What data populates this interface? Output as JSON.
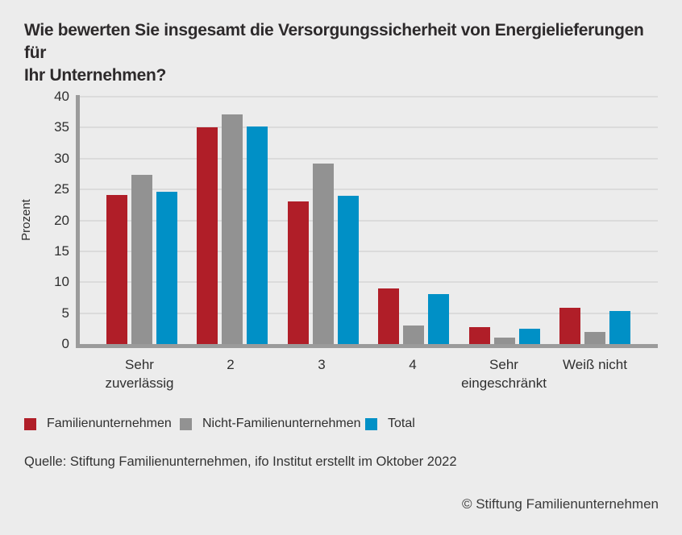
{
  "header": {
    "title_lines": [
      "Wie bewerten Sie insgesamt die Versorgungssicherheit von Energielieferungen für",
      "Ihr Unternehmen?"
    ]
  },
  "chart_data": {
    "type": "bar",
    "title": "Wie bewerten Sie insgesamt die Versorgungssicherheit von Energielieferungen für Ihr Unternehmen?",
    "xlabel": "",
    "ylabel": "Prozent",
    "ylim": [
      0,
      40
    ],
    "yticks": [
      0,
      5,
      10,
      15,
      20,
      25,
      30,
      35,
      40
    ],
    "grid": true,
    "legend_position": "bottom",
    "categories": [
      "Sehr zuverlässig",
      "2",
      "3",
      "4",
      "Sehr eingeschränkt",
      "Weiß nicht"
    ],
    "category_label_lines": [
      [
        "Sehr",
        "zuverlässig"
      ],
      [
        "2"
      ],
      [
        "3"
      ],
      [
        "4"
      ],
      [
        "Sehr",
        "eingeschränkt"
      ],
      [
        "Weiß nicht"
      ]
    ],
    "series": [
      {
        "name": "Familienunternehmen",
        "color": "#b01e28",
        "values": [
          24.1,
          35.0,
          23.1,
          9.0,
          2.7,
          5.9
        ]
      },
      {
        "name": "Nicht-Familienunternehmen",
        "color": "#929292",
        "values": [
          27.3,
          37.1,
          29.2,
          3.0,
          1.0,
          1.9
        ]
      },
      {
        "name": "Total",
        "color": "#0090c6",
        "values": [
          24.6,
          35.2,
          24.0,
          8.1,
          2.5,
          5.3
        ]
      }
    ]
  },
  "colors": {
    "background": "#ececec",
    "gridline": "#dbdbdb",
    "axis": "#9b9b9b",
    "title_text": "#2d2a2b",
    "familienunternehmen": "#b01e28",
    "nicht_familienunternehmen": "#929292",
    "total": "#0090c6"
  },
  "source_note": "Quelle: Stiftung Familienunternehmen, ifo Institut erstellt im Oktober 2022",
  "copyright_note": "© Stiftung Familienunternehmen"
}
